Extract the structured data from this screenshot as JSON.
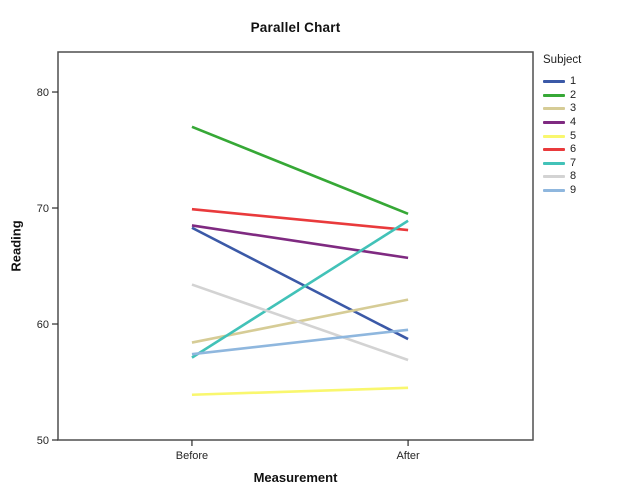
{
  "title": "Parallel Chart",
  "chart_data": {
    "type": "line",
    "title": "Parallel Chart",
    "xlabel": "Measurement",
    "ylabel": "Reading",
    "categories": [
      "Before",
      "After"
    ],
    "ylim": [
      50,
      83.45
    ],
    "yticks": [
      50,
      60,
      70,
      80
    ],
    "grid": false,
    "legend_title": "Subject",
    "legend_position": "right",
    "frame_color": "#4f4f4f",
    "tick_color": "#2b2b2b",
    "tick_label_color": "#262626",
    "series": [
      {
        "name": "1",
        "color": "#3b59a7",
        "values": [
          68.3,
          58.7
        ]
      },
      {
        "name": "2",
        "color": "#36a836",
        "values": [
          77.0,
          69.5
        ]
      },
      {
        "name": "3",
        "color": "#d6cc96",
        "values": [
          58.4,
          62.1
        ]
      },
      {
        "name": "4",
        "color": "#7f2a81",
        "values": [
          68.5,
          65.7
        ]
      },
      {
        "name": "5",
        "color": "#f9f76e",
        "values": [
          53.9,
          54.5
        ]
      },
      {
        "name": "6",
        "color": "#e93a3c",
        "values": [
          69.9,
          68.1
        ]
      },
      {
        "name": "7",
        "color": "#42c2b8",
        "values": [
          57.1,
          68.9
        ]
      },
      {
        "name": "8",
        "color": "#d3d3d3",
        "values": [
          63.4,
          56.9
        ]
      },
      {
        "name": "9",
        "color": "#8fb7de",
        "values": [
          57.4,
          59.5
        ]
      }
    ]
  }
}
